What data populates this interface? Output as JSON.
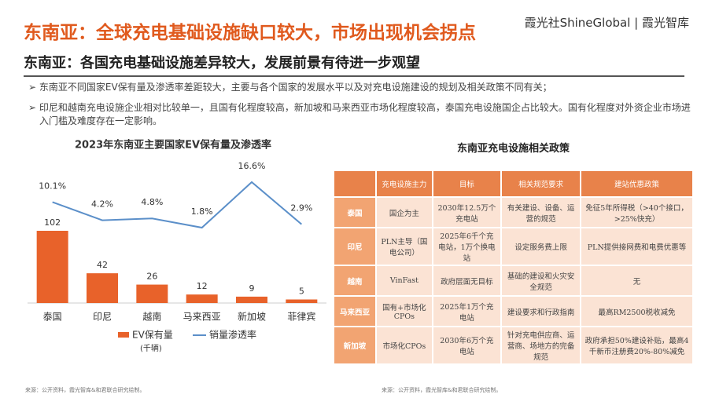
{
  "header": {
    "title": "东南亚：全球充电基础设施缺口较大，市场出现机会拐点",
    "logo": "霞光社ShineGlobal",
    "logo2": "霞光智库",
    "subtitle": "东南亚：各国充电基础设施差异较大，发展前景有待进一步观望"
  },
  "bullets": [
    "东南亚不同国家EV保有量及渗透率差距较大，主要与各个国家的发展水平以及对充电设施建设的规划及相关政策不同有关；",
    "印尼和越南充电设施企业相对比较单一，且国有化程度较高，新加坡和马来西亚市场化程度较高，泰国充电设施国企占比较大。国有化程度对外资企业市场进入门槛及难度存在一定影响。"
  ],
  "chart_data": {
    "type": "combo",
    "title": "2023年东南亚主要国家EV保有量及渗透率",
    "categories": [
      "泰国",
      "印尼",
      "越南",
      "马来西亚",
      "新加坡",
      "菲律宾"
    ],
    "series": [
      {
        "name": "EV保有量",
        "type": "bar",
        "color": "#e8622a",
        "values": [
          102,
          42,
          26,
          12,
          9,
          5
        ],
        "note": "(千辆)"
      },
      {
        "name": "销量渗透率",
        "type": "line",
        "color": "#5b8fc9",
        "values": [
          10.1,
          4.2,
          4.8,
          1.8,
          16.6,
          2.9
        ],
        "value_labels": [
          "10.1%",
          "4.2%",
          "4.8%",
          "1.8%",
          "16.6%",
          "2.9%"
        ]
      }
    ]
  },
  "table": {
    "title": "东南亚充电设施相关政策",
    "header": [
      "",
      "充电设施主力",
      "目标",
      "相关规范要求",
      "建站优惠政策"
    ],
    "rows": [
      [
        "泰国",
        "国企为主",
        "2030年12.5万个充电站",
        "有关建设、设备、运营的规范",
        "免征5年所得税（>40个接口，>25%快充）"
      ],
      [
        "印尼",
        "PLN主导（国电公司）",
        "2025年6千个充电站，1万个换电站",
        "设定服务费上限",
        "PLN提供接网费和电费优惠等"
      ],
      [
        "越南",
        "VinFast",
        "政府层面无目标",
        "基础的建设和火灾安全规范",
        "无"
      ],
      [
        "马来西亚",
        "国有+市场化CPOs",
        "2025年1万个充电站",
        "建设要求和行政指南",
        "最高RM2500税收减免"
      ],
      [
        "新加坡",
        "市场化CPOs",
        "2030年6万个充电站",
        "针对充电供应商、运营商、场地方的完备规范",
        "政府承担50%建设补贴，最高4千新币注册费20%-80%减免"
      ]
    ]
  },
  "sources": [
    "来源：公开资料，霞光智库&和君联合研究绘制。",
    "来源：公开资料，霞光智库&和君联合研究绘制。"
  ]
}
